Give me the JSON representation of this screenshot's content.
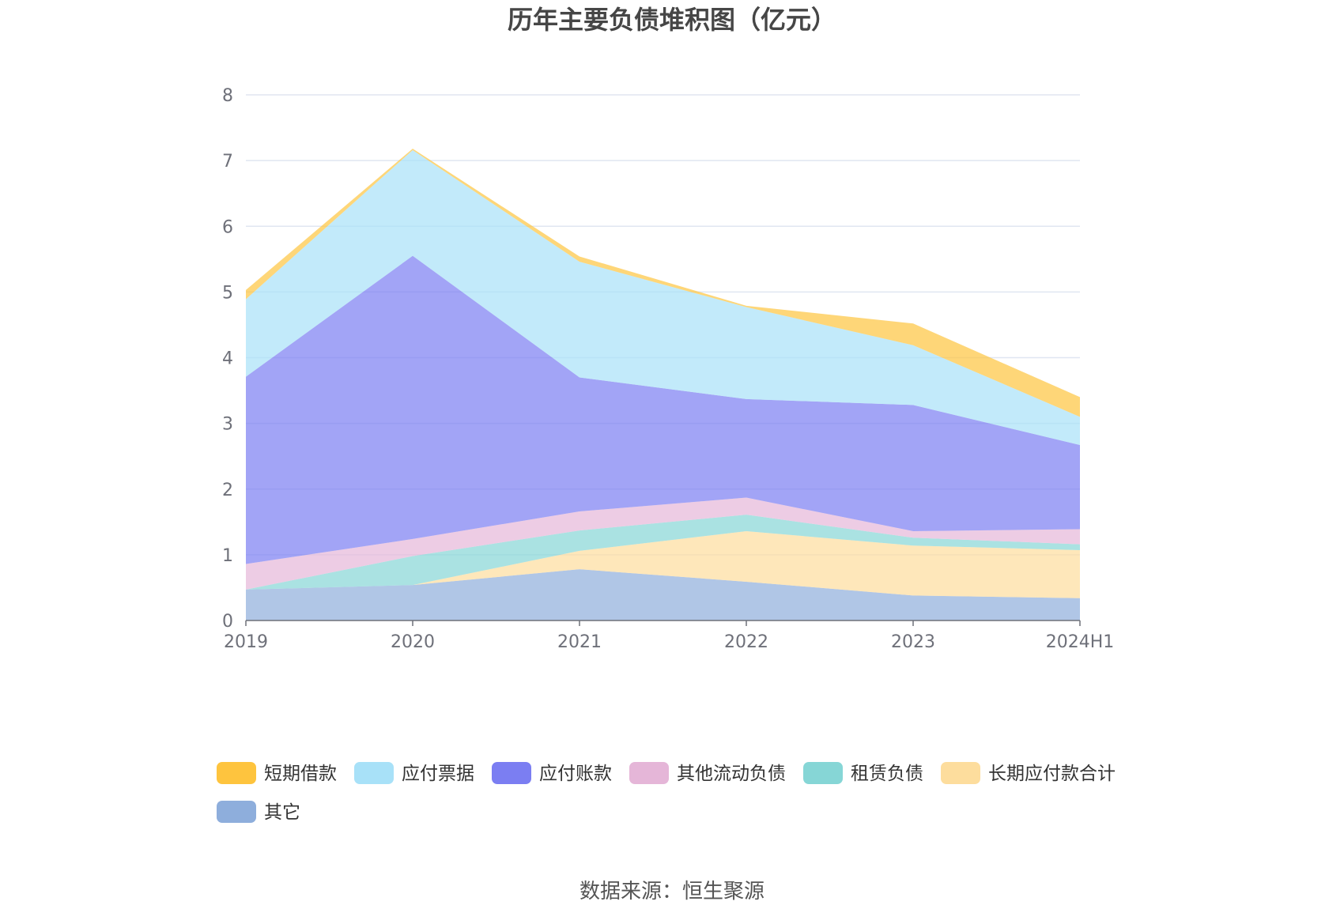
{
  "chart_data": {
    "type": "area",
    "stacked": true,
    "title": "历年主要负债堆积图（亿元）",
    "categories": [
      "2019",
      "2020",
      "2021",
      "2022",
      "2023",
      "2024H1"
    ],
    "ylim": [
      0,
      8
    ],
    "yticks": [
      "0",
      "1",
      "2",
      "3",
      "4",
      "5",
      "6",
      "7",
      "8"
    ],
    "grid": true,
    "legend_position": "bottom",
    "series": [
      {
        "name": "其它",
        "color": "#8eaedc",
        "values": [
          0.47,
          0.54,
          0.78,
          0.59,
          0.38,
          0.34
        ]
      },
      {
        "name": "长期应付款合计",
        "color": "#fddd9d",
        "values": [
          0.0,
          0.0,
          0.28,
          0.77,
          0.76,
          0.73
        ]
      },
      {
        "name": "租赁负债",
        "color": "#86d6d6",
        "values": [
          0.0,
          0.44,
          0.31,
          0.25,
          0.12,
          0.09
        ]
      },
      {
        "name": "其他流动负债",
        "color": "#e5b6d8",
        "values": [
          0.39,
          0.26,
          0.29,
          0.26,
          0.1,
          0.23
        ]
      },
      {
        "name": "应付账款",
        "color": "#7b7ef2",
        "values": [
          2.85,
          4.31,
          2.04,
          1.5,
          1.92,
          1.28
        ]
      },
      {
        "name": "应付票据",
        "color": "#a8e1f8",
        "values": [
          1.18,
          1.61,
          1.76,
          1.4,
          0.91,
          0.43
        ]
      },
      {
        "name": "短期借款",
        "color": "#fec43e",
        "values": [
          0.14,
          0.02,
          0.08,
          0.02,
          0.33,
          0.3
        ]
      }
    ],
    "legend_order": [
      "短期借款",
      "应付票据",
      "应付账款",
      "其他流动负债",
      "租赁负债",
      "长期应付款合计",
      "其它"
    ]
  },
  "source_text": "数据来源：恒生聚源"
}
